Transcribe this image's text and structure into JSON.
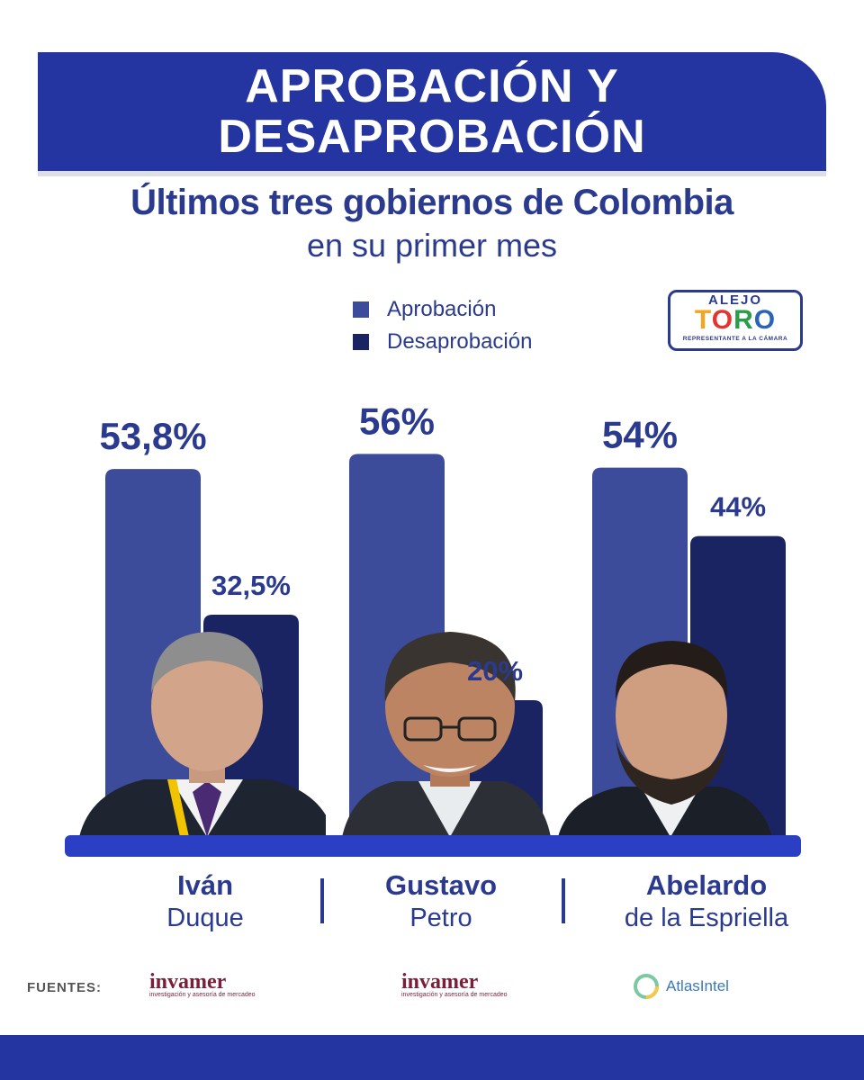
{
  "banner": {
    "line1": "APROBACIÓN Y",
    "line2": "DESAPROBACIÓN"
  },
  "subtitle": {
    "bold": "Últimos tres gobiernos de Colombia",
    "regular": "en su primer mes"
  },
  "legend": [
    {
      "label": "Aprobación",
      "color": "#3d4b9b"
    },
    {
      "label": "Desaprobación",
      "color": "#1a2462"
    }
  ],
  "logo": {
    "top": "ALEJO",
    "letters": [
      "T",
      "O",
      "R",
      "O"
    ],
    "letter_colors": [
      "#f4a51c",
      "#e3342f",
      "#2a9d4a",
      "#2a63b8"
    ],
    "bottom": "REPRESENTANTE A LA CÁMARA"
  },
  "chart_data": {
    "type": "bar",
    "categories": [
      "Iván Duque",
      "Gustavo Petro",
      "Abelardo de la Espriella"
    ],
    "series": [
      {
        "name": "Aprobación",
        "values": [
          53.8,
          56,
          54
        ],
        "labels": [
          "53,8%",
          "56%",
          "54%"
        ],
        "color": "#3d4b9b"
      },
      {
        "name": "Desaprobación",
        "values": [
          32.5,
          20,
          44
        ],
        "labels": [
          "32,5%",
          "20%",
          "44%"
        ],
        "color": "#1a2462"
      }
    ],
    "title": "APROBACIÓN Y DESAPROBACIÓN",
    "xlabel": "",
    "ylabel": "",
    "ylim": [
      0,
      100
    ],
    "grid": false,
    "legend_position": "top"
  },
  "people": [
    {
      "first": "Iván",
      "last": "Duque"
    },
    {
      "first": "Gustavo",
      "last": "Petro"
    },
    {
      "first": "Abelardo",
      "last": "de la Espriella"
    }
  ],
  "sources": {
    "label": "FUENTES:",
    "items": [
      {
        "name": "invamer",
        "tagline": "investigación y asesoría de mercadeo"
      },
      {
        "name": "invamer",
        "tagline": "investigación y asesoría de mercadeo"
      },
      {
        "name": "AtlasIntel"
      }
    ]
  },
  "colors": {
    "brand_blue": "#2434a0",
    "text_blue": "#2a3a8f",
    "baseline": "#2b3fc4"
  }
}
